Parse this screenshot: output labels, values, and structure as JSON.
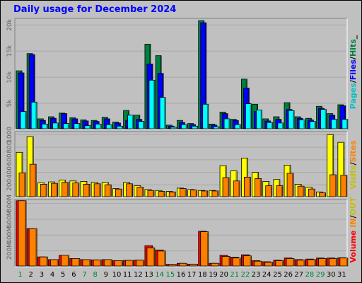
{
  "title": "Daily usage for December 2024",
  "colors": {
    "hits": "#008040",
    "files": "#0000ff",
    "pages": "#00ffff",
    "visits": "#ffff00",
    "sites": "#ff8000",
    "kbytes_in": "#ff0000",
    "kbytes_out": "#ff8000",
    "weekday": "#000000",
    "weekend": "#008040",
    "legend_sep": "#000000"
  },
  "legends": {
    "top": [
      {
        "text": "Pages",
        "color": "#00c0c0"
      },
      {
        "text": "/",
        "color": "#000000"
      },
      {
        "text": "Files",
        "color": "#0000ff"
      },
      {
        "text": "/",
        "color": "#000000"
      },
      {
        "text": "Hits",
        "color": "#008040"
      },
      {
        "text": "_",
        "color": "#000000"
      }
    ],
    "middle": [
      {
        "text": "Visits",
        "color": "#c0c000"
      },
      {
        "text": "/",
        "color": "#000000"
      },
      {
        "text": "Sites",
        "color": "#ff8000"
      }
    ],
    "bottom": [
      {
        "text": "Volume",
        "color": "#ff0000"
      },
      {
        "text": " ",
        "color": "#000000"
      },
      {
        "text": "IN",
        "color": "#ff8000"
      },
      {
        "text": "/",
        "color": "#000000"
      },
      {
        "text": "OUT",
        "color": "#c0c000"
      }
    ]
  },
  "chart_data": [
    {
      "type": "bar",
      "panel": "hits-files-pages",
      "categories": [
        "1",
        "2",
        "3",
        "4",
        "5",
        "6",
        "7",
        "8",
        "9",
        "10",
        "11",
        "12",
        "13",
        "14",
        "15",
        "16",
        "17",
        "18",
        "19",
        "20",
        "21",
        "22",
        "23",
        "24",
        "25",
        "26",
        "27",
        "28",
        "29",
        "30",
        "31"
      ],
      "series": [
        {
          "name": "Hits",
          "values": [
            11100,
            14400,
            1900,
            2300,
            3000,
            2100,
            1700,
            1600,
            2200,
            1300,
            3500,
            2600,
            16200,
            14000,
            700,
            1600,
            1000,
            20700,
            900,
            3200,
            1800,
            9500,
            4700,
            1900,
            2300,
            5000,
            2300,
            2000,
            4300,
            2900,
            4600
          ]
        },
        {
          "name": "Files",
          "values": [
            10700,
            14200,
            1600,
            2000,
            2900,
            1900,
            1500,
            1400,
            1900,
            1100,
            1600,
            1800,
            12400,
            10600,
            500,
            1200,
            800,
            20300,
            700,
            2900,
            1600,
            7800,
            3300,
            1500,
            1800,
            3700,
            2000,
            1700,
            3900,
            2600,
            4400
          ]
        },
        {
          "name": "Pages",
          "values": [
            3300,
            5100,
            900,
            1100,
            1000,
            1000,
            600,
            900,
            800,
            500,
            2600,
            1400,
            9300,
            6000,
            300,
            800,
            500,
            4700,
            400,
            1900,
            800,
            4800,
            3600,
            1200,
            1100,
            3500,
            1700,
            1400,
            3700,
            1800,
            1800
          ]
        }
      ],
      "y_ticks": [
        "5k",
        "10k",
        "15k",
        "20k"
      ],
      "ylim": [
        0,
        21000
      ]
    },
    {
      "type": "bar",
      "panel": "visits-sites",
      "categories": [
        "1",
        "2",
        "3",
        "4",
        "5",
        "6",
        "7",
        "8",
        "9",
        "10",
        "11",
        "12",
        "13",
        "14",
        "15",
        "16",
        "17",
        "18",
        "19",
        "20",
        "21",
        "22",
        "23",
        "24",
        "25",
        "26",
        "27",
        "28",
        "29",
        "30",
        "31"
      ],
      "series": [
        {
          "name": "Visits",
          "values": [
            930,
            1260,
            290,
            310,
            350,
            330,
            320,
            300,
            300,
            170,
            300,
            230,
            150,
            130,
            110,
            180,
            150,
            130,
            130,
            650,
            540,
            810,
            510,
            320,
            360,
            660,
            260,
            200,
            100,
            1300,
            1140
          ]
        },
        {
          "name": "Sites",
          "values": [
            500,
            680,
            260,
            280,
            300,
            290,
            260,
            270,
            250,
            160,
            270,
            200,
            130,
            110,
            100,
            170,
            140,
            120,
            120,
            400,
            330,
            410,
            380,
            230,
            230,
            490,
            220,
            160,
            80,
            460,
            450
          ]
        }
      ],
      "y_ticks": [
        "200",
        "400",
        "600",
        "800",
        "1000"
      ],
      "ylim": [
        0,
        1350
      ]
    },
    {
      "type": "bar",
      "panel": "volume",
      "categories": [
        "1",
        "2",
        "3",
        "4",
        "5",
        "6",
        "7",
        "8",
        "9",
        "10",
        "11",
        "12",
        "13",
        "14",
        "15",
        "16",
        "17",
        "18",
        "19",
        "20",
        "21",
        "22",
        "23",
        "24",
        "25",
        "26",
        "27",
        "28",
        "29",
        "30",
        "31"
      ],
      "series": [
        {
          "name": "KBytes In",
          "values": [
            1220,
            700,
            170,
            120,
            200,
            140,
            120,
            115,
            120,
            100,
            105,
            110,
            380,
            300,
            30,
            50,
            35,
            650,
            50,
            200,
            165,
            210,
            100,
            80,
            110,
            150,
            120,
            130,
            150,
            150,
            155
          ]
        },
        {
          "name": "KBytes Out",
          "values": [
            1220,
            700,
            170,
            120,
            200,
            140,
            120,
            115,
            120,
            100,
            105,
            110,
            340,
            280,
            30,
            50,
            35,
            640,
            50,
            180,
            150,
            190,
            90,
            70,
            100,
            140,
            110,
            120,
            140,
            140,
            150
          ]
        }
      ],
      "y_ticks": [
        "200M",
        "400M",
        "600M",
        "800M"
      ],
      "ylim": [
        0,
        1230
      ]
    }
  ],
  "x_axis": {
    "days": [
      "1",
      "2",
      "3",
      "4",
      "5",
      "6",
      "7",
      "8",
      "9",
      "10",
      "11",
      "12",
      "13",
      "14",
      "15",
      "16",
      "17",
      "18",
      "19",
      "20",
      "21",
      "22",
      "23",
      "24",
      "25",
      "26",
      "27",
      "28",
      "29",
      "30",
      "31"
    ],
    "weekend": [
      1,
      7,
      8,
      14,
      15,
      21,
      22,
      28,
      29
    ]
  }
}
